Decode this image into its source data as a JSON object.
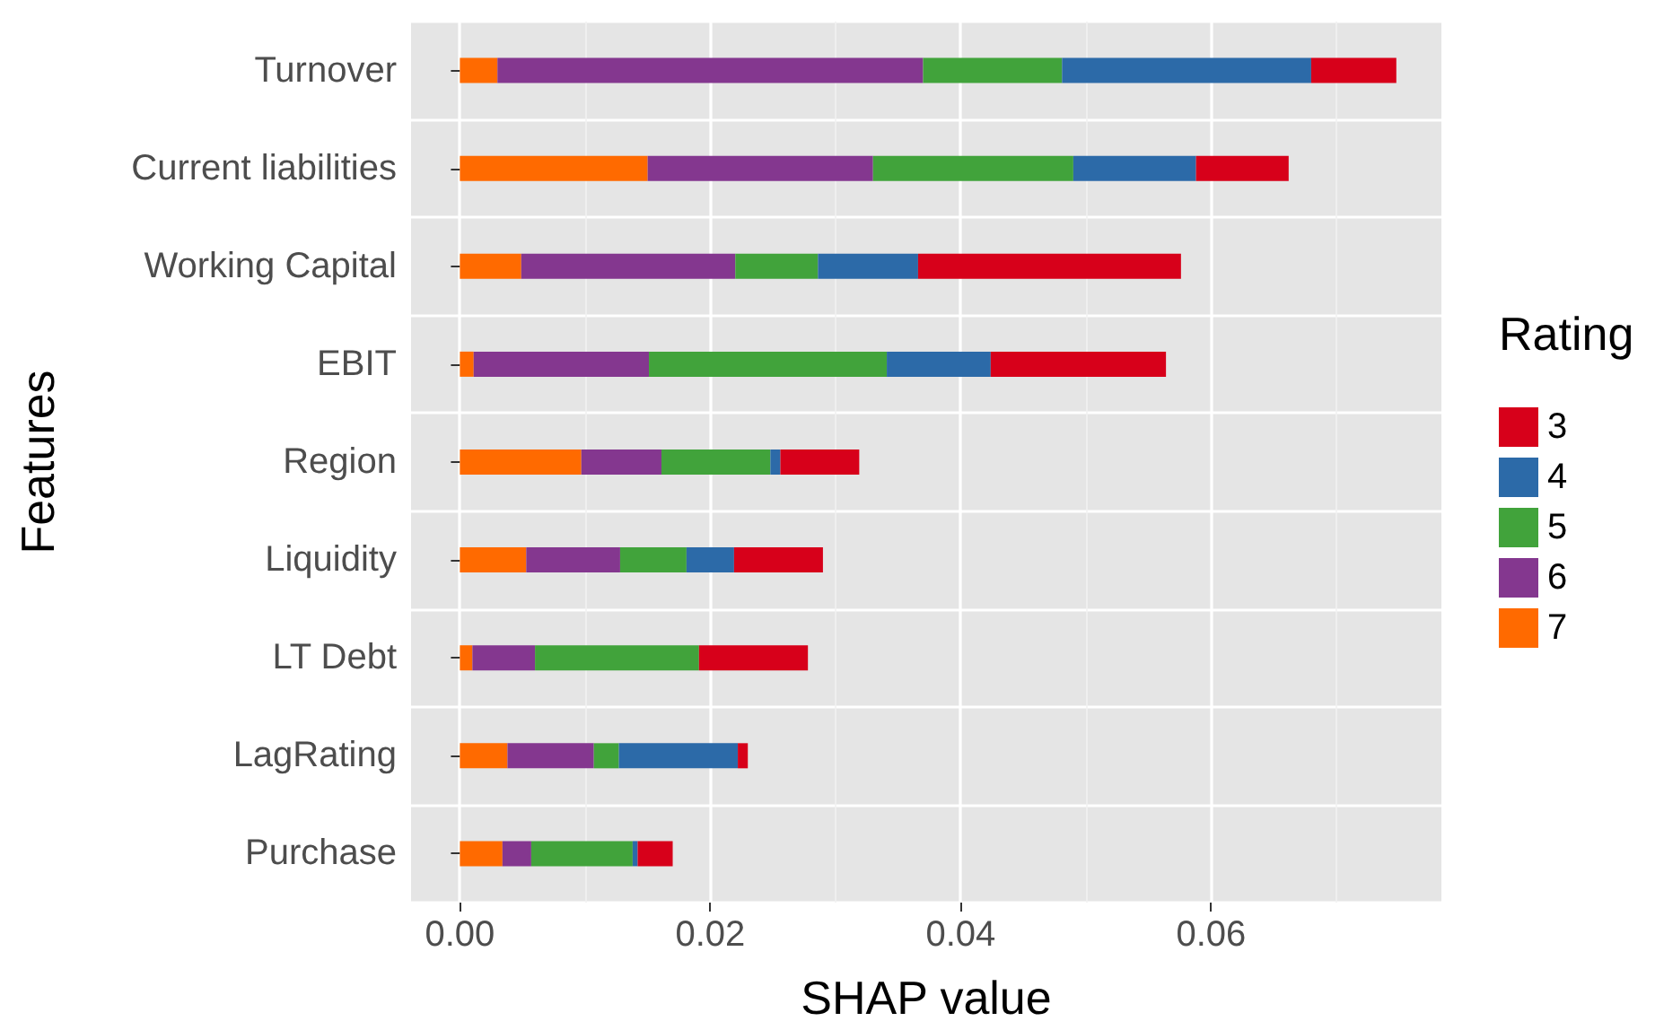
{
  "chart_data": {
    "type": "bar",
    "orientation": "horizontal",
    "stacked": true,
    "xlabel": "SHAP value",
    "ylabel": "Features",
    "legend_title": "Rating",
    "legend": "right",
    "grid": true,
    "categories": [
      "Turnover",
      "Current liabilities",
      "Working Capital",
      "EBIT",
      "Region",
      "Liquidity",
      "LT Debt",
      "LagRating",
      "Purchase"
    ],
    "xlim": [
      -0.0039,
      0.0784
    ],
    "xticks": [
      {
        "value": 0,
        "label": "0.00"
      },
      {
        "value": 0.02,
        "label": "0.02"
      },
      {
        "value": 0.04,
        "label": "0.04"
      },
      {
        "value": 0.06,
        "label": "0.06"
      }
    ],
    "series": [
      {
        "name": "7",
        "color": "#ff6a00",
        "values": [
          0.003,
          0.015,
          0.0049,
          0.0011,
          0.0097,
          0.0053,
          0.001,
          0.0038,
          0.0034
        ]
      },
      {
        "name": "6",
        "color": "#84378f",
        "values": [
          0.034,
          0.018,
          0.0171,
          0.014,
          0.0064,
          0.0075,
          0.005,
          0.0069,
          0.0023
        ]
      },
      {
        "name": "5",
        "color": "#41a33b",
        "values": [
          0.0111,
          0.016,
          0.0066,
          0.019,
          0.0087,
          0.0053,
          0.0131,
          0.002,
          0.0081
        ]
      },
      {
        "name": "4",
        "color": "#2c6aa8",
        "values": [
          0.0199,
          0.0098,
          0.008,
          0.0083,
          0.0008,
          0.0038,
          0,
          0.0095,
          0.0004
        ]
      },
      {
        "name": "3",
        "color": "#d7001a",
        "values": [
          0.0068,
          0.0074,
          0.021,
          0.014,
          0.0063,
          0.0071,
          0.0087,
          0.0008,
          0.0028
        ]
      }
    ]
  }
}
